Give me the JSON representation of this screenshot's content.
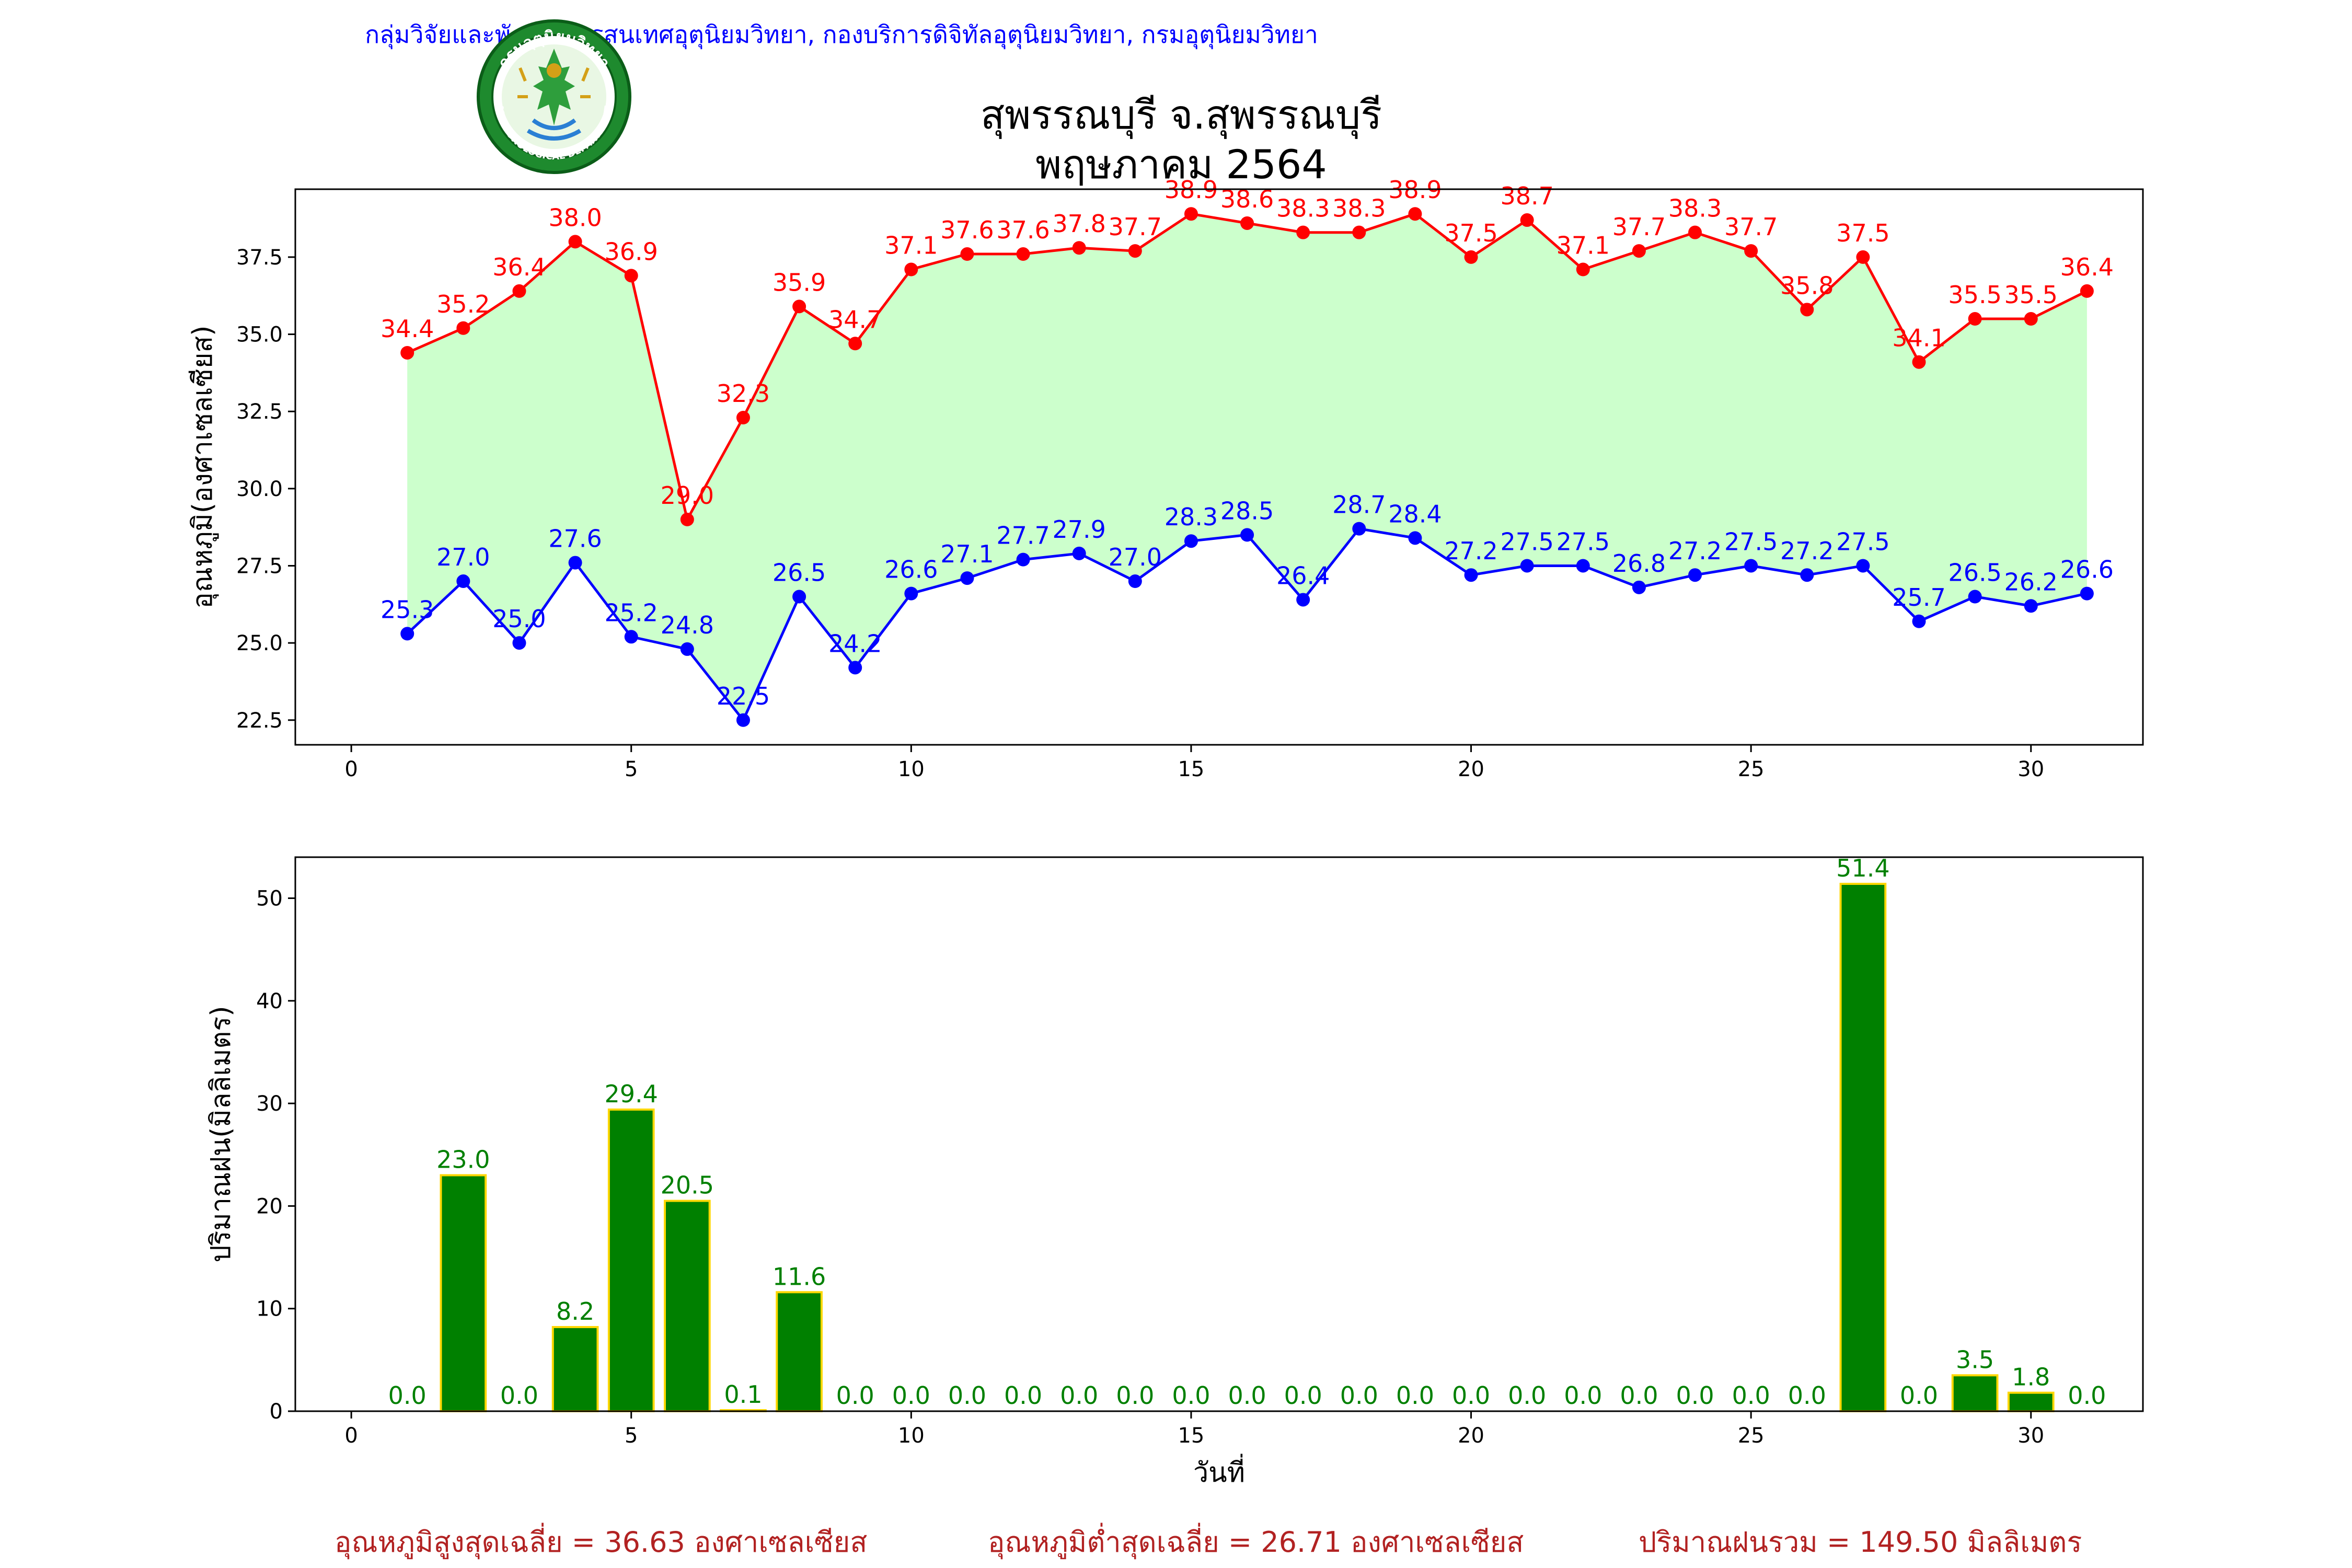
{
  "header": {
    "department_line": "กลุ่มวิจัยและพัฒนาสารสนเทศอุตุนิยมวิทยา, กองบริการดิจิทัลอุตุนิยมวิทยา, กรมอุตุนิยมวิทยา",
    "title_line1": "สุพรรณบุรี จ.สุพรรณบุรี",
    "title_line2": "พฤษภาคม 2564",
    "logo": {
      "icon": "meteorological-department-seal-icon",
      "text_top": "กรมอุตุนิยมวิทยา",
      "text_bottom": "METEOROLOGICAL DEPARTMENT"
    }
  },
  "summary": {
    "avg_max": "อุณหภูมิสูงสุดเฉลี่ย = 36.63 องศาเซลเซียส",
    "avg_min": "อุณหภูมิต่ำสุดเฉลี่ย = 26.71 องศาเซลเซียส",
    "total_rain": "ปริมาณฝนรวม = 149.50 มิลลิเมตร"
  },
  "colors": {
    "max_line": "#ff0000",
    "min_line": "#0000ff",
    "fill": "#ccffcc",
    "rain_bar": "#008000",
    "rain_bar_edge": "#ffd700",
    "rain_label": "#008000",
    "summary_text": "#b22222",
    "dept_text": "#0000ff"
  },
  "chart_data": [
    {
      "type": "line",
      "ylabel": "อุณหภูมิ(องศาเซลเซียส)",
      "xlabel": "",
      "xlim": [
        -1,
        32
      ],
      "ylim": [
        21.7,
        39.7
      ],
      "xticks": [
        0,
        5,
        10,
        15,
        20,
        25,
        30
      ],
      "yticks": [
        22.5,
        25.0,
        27.5,
        30.0,
        32.5,
        35.0,
        37.5
      ],
      "grid": false,
      "fill_between": true,
      "x": [
        1,
        2,
        3,
        4,
        5,
        6,
        7,
        8,
        9,
        10,
        11,
        12,
        13,
        14,
        15,
        16,
        17,
        18,
        19,
        20,
        21,
        22,
        23,
        24,
        25,
        26,
        27,
        28,
        29,
        30,
        31
      ],
      "series": [
        {
          "key": "max",
          "values": [
            34.4,
            35.2,
            36.4,
            38.0,
            36.9,
            29.0,
            32.3,
            35.9,
            34.7,
            37.1,
            37.6,
            37.6,
            37.8,
            37.7,
            38.9,
            38.6,
            38.3,
            38.3,
            38.9,
            37.5,
            38.7,
            37.1,
            37.7,
            38.3,
            37.7,
            35.8,
            37.5,
            34.1,
            35.5,
            35.5,
            36.4
          ]
        },
        {
          "key": "min",
          "values": [
            25.3,
            27.0,
            25.0,
            27.6,
            25.2,
            24.8,
            22.5,
            26.5,
            24.2,
            26.6,
            27.1,
            27.7,
            27.9,
            27.0,
            28.3,
            28.5,
            26.4,
            28.7,
            28.4,
            27.2,
            27.5,
            27.5,
            26.8,
            27.2,
            27.5,
            27.2,
            27.5,
            25.7,
            26.5,
            26.2,
            26.6
          ]
        }
      ]
    },
    {
      "type": "bar",
      "ylabel": "ปริมาณฝน(มิลลิเมตร)",
      "xlabel": "วันที่",
      "xlim": [
        -1,
        32
      ],
      "ylim": [
        0,
        54
      ],
      "xticks": [
        0,
        5,
        10,
        15,
        20,
        25,
        30
      ],
      "yticks": [
        0,
        10,
        20,
        30,
        40,
        50
      ],
      "grid": false,
      "x": [
        1,
        2,
        3,
        4,
        5,
        6,
        7,
        8,
        9,
        10,
        11,
        12,
        13,
        14,
        15,
        16,
        17,
        18,
        19,
        20,
        21,
        22,
        23,
        24,
        25,
        26,
        27,
        28,
        29,
        30,
        31
      ],
      "values": [
        0.0,
        23.0,
        0.0,
        8.2,
        29.4,
        20.5,
        0.1,
        11.6,
        0.0,
        0.0,
        0.0,
        0.0,
        0.0,
        0.0,
        0.0,
        0.0,
        0.0,
        0.0,
        0.0,
        0.0,
        0.0,
        0.0,
        0.0,
        0.0,
        0.0,
        0.0,
        51.4,
        0.0,
        3.5,
        1.8,
        0.0
      ]
    }
  ]
}
